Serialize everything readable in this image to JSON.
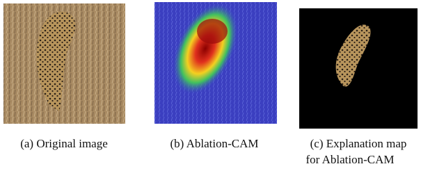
{
  "panels": [
    {
      "caption_lines": [
        "(a) Original image"
      ]
    },
    {
      "caption_lines": [
        "(b) Ablation-CAM"
      ]
    },
    {
      "caption_lines": [
        "(c) Explanation map",
        "for Ablation-CAM"
      ]
    }
  ]
}
